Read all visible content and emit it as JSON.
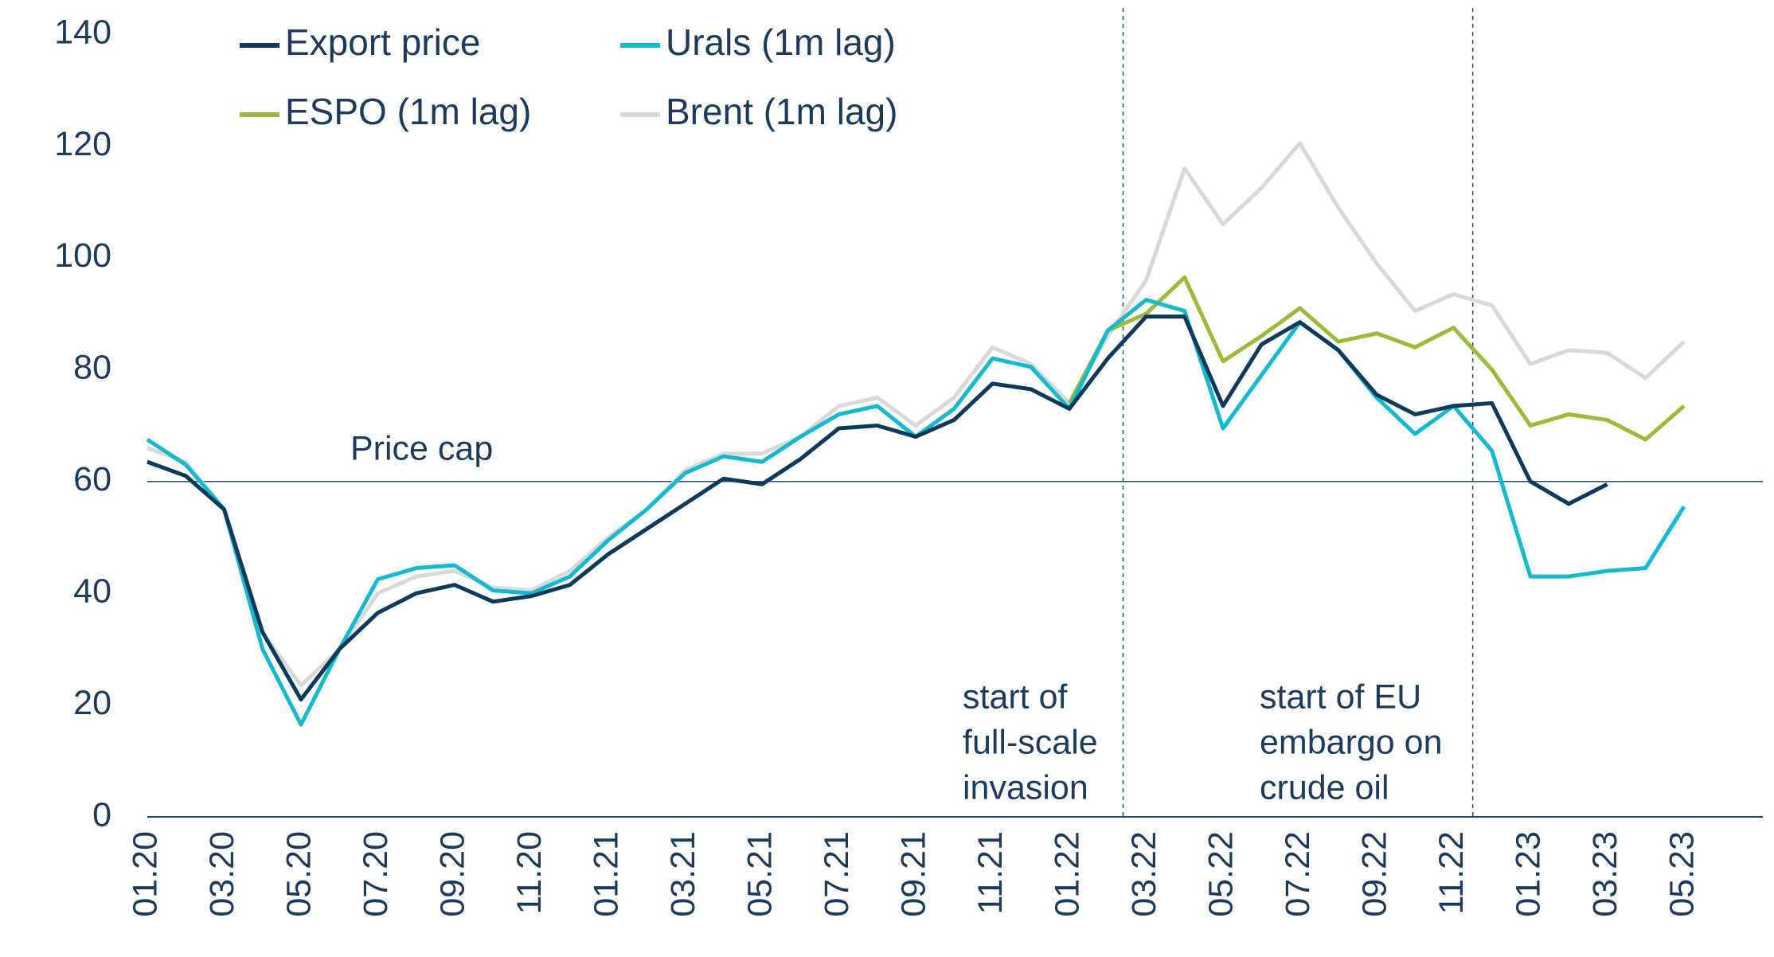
{
  "chart_data": {
    "type": "line",
    "categories": [
      "01.20",
      null,
      "03.20",
      null,
      "05.20",
      null,
      "07.20",
      null,
      "09.20",
      null,
      "11.20",
      null,
      "01.21",
      null,
      "03.21",
      null,
      "05.21",
      null,
      "07.21",
      null,
      "09.21",
      null,
      "11.21",
      null,
      "01.22",
      null,
      "03.22",
      null,
      "05.22",
      null,
      "07.22",
      null,
      "09.22",
      null,
      "11.22",
      null,
      "01.23",
      null,
      "03.23",
      null,
      "05.23"
    ],
    "series": [
      {
        "name": "Export price",
        "color": "#0d3a5c",
        "values": [
          63.5,
          61,
          55,
          33,
          21,
          30,
          36.5,
          40,
          41.5,
          38.5,
          39.5,
          41.5,
          47,
          51.5,
          56,
          60.5,
          59.5,
          64,
          69.5,
          70,
          68,
          71,
          77.5,
          76.5,
          73,
          82,
          89.5,
          89.5,
          73.5,
          84.5,
          88.5,
          83.5,
          75.5,
          72,
          73.5,
          74,
          60,
          56,
          59.5,
          null,
          null
        ]
      },
      {
        "name": "Urals (1m lag)",
        "color": "#12b9cf",
        "values": [
          67.5,
          63,
          55,
          30,
          16.5,
          30,
          42.5,
          44.5,
          45,
          40.5,
          40,
          43,
          49.5,
          55,
          61.5,
          64.5,
          63.5,
          68,
          72,
          73.5,
          68,
          73,
          82,
          80.5,
          73,
          87,
          92.5,
          90.5,
          69.5,
          79,
          88.5,
          83.5,
          75,
          68.5,
          73.5,
          65.5,
          43,
          43,
          44,
          44.5,
          55.5
        ]
      },
      {
        "name": "ESPO (1m lag)",
        "color": "#9dbb3a",
        "values": [
          null,
          null,
          null,
          null,
          null,
          null,
          null,
          null,
          null,
          null,
          null,
          null,
          null,
          null,
          null,
          null,
          null,
          null,
          null,
          null,
          null,
          null,
          null,
          null,
          74,
          87,
          90,
          96.5,
          81.5,
          86,
          91,
          85,
          86.5,
          84,
          87.5,
          80,
          70,
          72,
          71,
          67.5,
          73.5
        ]
      },
      {
        "name": "Brent (1m lag)",
        "color": "#d9d9d9",
        "values": [
          66,
          63.5,
          55,
          33,
          23.5,
          30,
          40,
          43,
          44,
          41,
          40.5,
          44,
          50,
          55,
          62,
          65,
          65,
          68,
          73.5,
          75,
          70,
          75,
          84,
          81,
          74,
          86,
          96,
          116,
          106,
          112.5,
          120.5,
          109,
          99,
          90.5,
          93.5,
          91.5,
          81,
          83.5,
          83,
          78.5,
          85
        ]
      }
    ],
    "ylim": [
      0,
      140
    ],
    "yticks": [
      0,
      20,
      40,
      60,
      80,
      100,
      120,
      140
    ],
    "price_cap": 60,
    "price_cap_label": "Price cap",
    "annotations": [
      [
        "start of",
        "full-scale",
        "invasion"
      ],
      [
        "start of EU",
        "embargo on",
        "crude oil"
      ]
    ],
    "legend": "top-left"
  }
}
